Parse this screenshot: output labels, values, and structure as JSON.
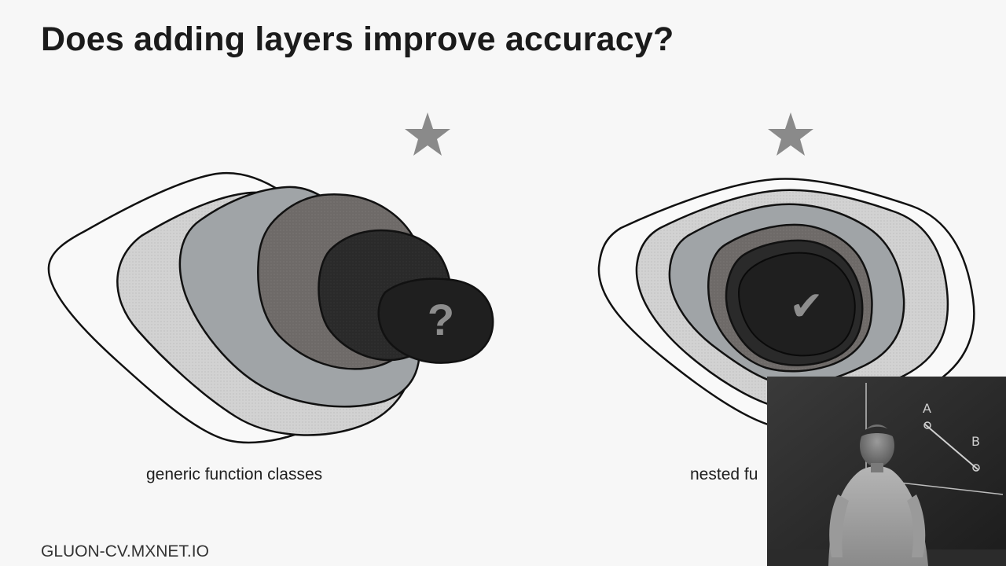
{
  "slide": {
    "title": "Does adding layers improve accuracy?",
    "footer_url": "GLUON-CV.MXNET.IO"
  },
  "diagrams": {
    "left": {
      "caption": "generic function classes",
      "center_mark": "?"
    },
    "right": {
      "caption": "nested fu",
      "center_mark": "✔"
    }
  },
  "whiteboard": {
    "point_a": "A",
    "point_b": "B"
  },
  "colors": {
    "background": "#f7f7f7",
    "star": "#8a8a8a",
    "light_gray": "#d4d4d4",
    "mid_gray": "#9ea3a6",
    "dark_gray": "#6e6a68",
    "near_black": "#2c2c2c",
    "black": "#1e1e1e"
  }
}
